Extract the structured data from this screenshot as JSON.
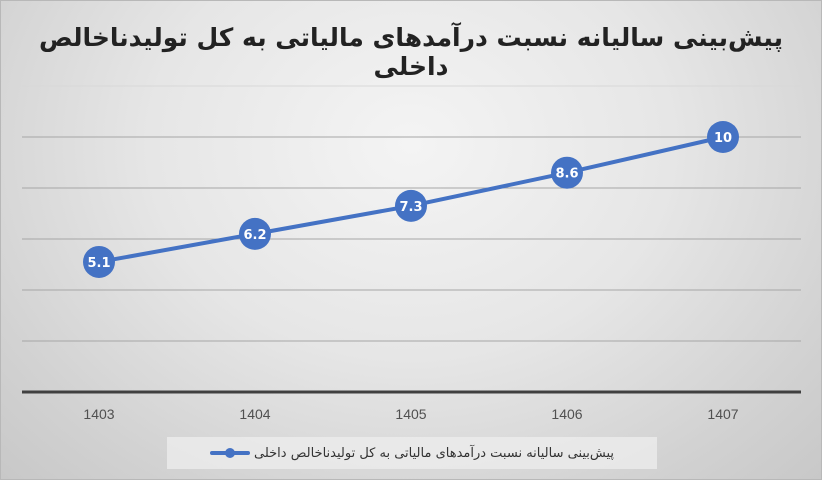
{
  "chart_data": {
    "type": "line",
    "title": "پیش‌بینی سالیانه نسبت درآمدهای مالیاتی به کل تولیدناخالص داخلی",
    "categories": [
      "1403",
      "1404",
      "1405",
      "1406",
      "1407"
    ],
    "series": [
      {
        "name": "پیش‌بینی سالیانه نسبت درآمدهای مالیاتی به کل تولیدناخالص داخلی",
        "values": [
          5.1,
          6.2,
          7.3,
          8.6,
          10
        ],
        "color": "#4472c4"
      }
    ],
    "data_labels": [
      "5.1",
      "6.2",
      "7.3",
      "8.6",
      "10"
    ],
    "xlabel": "",
    "ylabel": "",
    "ylim": [
      0,
      12
    ],
    "y_gridline_step": 2,
    "grid": true,
    "y_tick_labels_visible": false,
    "legend_position": "bottom"
  },
  "legend": {
    "label": "پیش‌بینی سالیانه نسبت درآمدهای مالیاتی به کل تولیدناخالص داخلی"
  },
  "colors": {
    "series": "#4472c4",
    "axis": "#404040",
    "gridline": "#a6a6a6"
  }
}
